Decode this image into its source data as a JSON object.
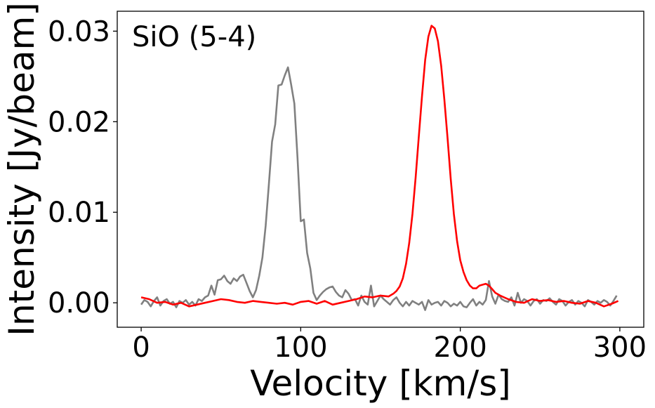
{
  "chart_data": {
    "type": "line",
    "title": "",
    "annotation": "SiO (5-4)",
    "xlabel": "Velocity [km/s]",
    "ylabel": "Intensity [Jy/beam]",
    "xlim": [
      -15,
      315
    ],
    "ylim": [
      -0.0027,
      0.0322
    ],
    "xticks": [
      {
        "value": 0,
        "label": "0"
      },
      {
        "value": 100,
        "label": "100"
      },
      {
        "value": 200,
        "label": "200"
      },
      {
        "value": 300,
        "label": "300"
      }
    ],
    "yticks": [
      {
        "value": 0.0,
        "label": "0.00"
      },
      {
        "value": 0.01,
        "label": "0.01"
      },
      {
        "value": 0.02,
        "label": "0.02"
      },
      {
        "value": 0.03,
        "label": "0.03"
      }
    ],
    "grid": false,
    "series": [
      {
        "color": "#808080",
        "x": [
          0,
          2,
          4,
          6,
          8,
          10,
          12,
          14,
          16,
          18,
          20,
          22,
          24,
          26,
          28,
          30,
          32,
          34,
          36,
          38,
          40,
          42,
          44,
          46,
          48,
          50,
          52,
          54,
          56,
          58,
          60,
          62,
          64,
          66,
          68,
          70,
          72,
          74,
          76,
          78,
          80,
          82,
          84,
          86,
          88,
          90,
          92,
          94,
          96,
          98,
          100,
          102,
          104,
          106,
          108,
          110,
          112,
          114,
          116,
          118,
          120,
          122,
          124,
          126,
          128,
          130,
          132,
          134,
          136,
          138,
          140,
          142,
          144,
          146,
          148,
          150,
          152,
          154,
          156,
          158,
          160,
          162,
          164,
          166,
          168,
          170,
          172,
          174,
          176,
          178,
          180,
          182,
          184,
          186,
          188,
          190,
          192,
          194,
          196,
          198,
          200,
          202,
          204,
          206,
          208,
          210,
          212,
          214,
          216,
          218,
          220,
          222,
          224,
          226,
          228,
          230,
          232,
          234,
          236,
          238,
          240,
          242,
          244,
          246,
          248,
          250,
          252,
          254,
          256,
          258,
          260,
          262,
          264,
          266,
          268,
          270,
          272,
          274,
          276,
          278,
          280,
          282,
          284,
          286,
          288,
          290,
          292,
          294,
          296,
          298
        ],
        "y": [
          -0.0002,
          0.0003,
          0.0001,
          -0.0004,
          0.0002,
          0.0006,
          -0.0003,
          0.0002,
          0.0004,
          -0.0001,
          0.0001,
          -0.0005,
          0.0002,
          0.0,
          0.0003,
          -0.0002,
          0.0001,
          -0.0003,
          0.0004,
          0.0002,
          0.0006,
          0.0008,
          0.0019,
          0.0009,
          0.0025,
          0.0026,
          0.003,
          0.0024,
          0.0021,
          0.0027,
          0.0024,
          0.0029,
          0.0031,
          0.0022,
          0.0013,
          0.0006,
          0.0014,
          0.003,
          0.005,
          0.0085,
          0.013,
          0.0178,
          0.0197,
          0.024,
          0.0241,
          0.0251,
          0.026,
          0.0241,
          0.022,
          0.016,
          0.009,
          0.0092,
          0.0055,
          0.0038,
          0.0011,
          0.0003,
          0.0008,
          0.0012,
          0.0015,
          0.0017,
          0.0018,
          0.0012,
          0.0008,
          0.0006,
          0.0014,
          0.001,
          0.0003,
          0.0004,
          -0.0003,
          0.0008,
          0.0001,
          -0.0002,
          0.0019,
          -0.0004,
          0.0002,
          0.0008,
          0.0004,
          0.0001,
          -0.0002,
          0.0003,
          0.0006,
          0.0,
          -0.0004,
          0.0001,
          -0.0003,
          0.0002,
          0.0,
          -0.0002,
          0.0001,
          -0.0008,
          0.0003,
          -0.0002,
          0.0,
          0.0001,
          -0.0003,
          0.0002,
          0.0,
          -0.0004,
          -0.0001,
          -0.0003,
          0.0001,
          -0.0004,
          -0.0005,
          0.0,
          0.0004,
          -0.0003,
          0.0001,
          -0.0002,
          0.0003,
          0.0024,
          0.0007,
          -0.0001,
          0.0009,
          0.0004,
          0.0002,
          0.0001,
          0.0006,
          -0.0003,
          0.0011,
          0.0,
          0.0004,
          0.0002,
          -0.0003,
          0.0002,
          0.0004,
          -0.0001,
          0.0003,
          0.0002,
          0.0005,
          0.0001,
          -0.0002,
          0.0004,
          0.0002,
          -0.0003,
          0.0001,
          0.0003,
          -0.0002,
          0.0002,
          0.0,
          -0.0004,
          0.0003,
          0.0001,
          -0.0002,
          0.0002,
          0.0,
          0.0003,
          0.0001,
          -0.0003,
          0.0002,
          0.0008
        ]
      },
      {
        "color": "#ff0000",
        "x": [
          0,
          5,
          10,
          15,
          20,
          25,
          30,
          35,
          40,
          45,
          50,
          55,
          60,
          65,
          70,
          75,
          80,
          85,
          90,
          95,
          100,
          105,
          110,
          115,
          120,
          125,
          130,
          135,
          140,
          145,
          150,
          155,
          158,
          160,
          162,
          164,
          166,
          168,
          170,
          172,
          174,
          176,
          178,
          180,
          182,
          184,
          186,
          188,
          190,
          192,
          194,
          196,
          198,
          200,
          202,
          204,
          206,
          208,
          210,
          212,
          214,
          216,
          218,
          220,
          222,
          225,
          230,
          235,
          240,
          245,
          250,
          255,
          260,
          265,
          270,
          275,
          280,
          285,
          290,
          295,
          299
        ],
        "y": [
          0.0006,
          0.0004,
          0.0,
          0.0001,
          -0.0002,
          0.0,
          -0.0004,
          -0.0002,
          0.0,
          0.0002,
          0.0004,
          0.0003,
          0.0001,
          0.0,
          0.0002,
          0.0001,
          0.0,
          -0.0001,
          0.0,
          -0.0002,
          0.0001,
          0.0002,
          -0.0001,
          0.0002,
          -0.0002,
          0.0,
          0.0002,
          0.0004,
          0.0007,
          0.0006,
          0.0008,
          0.0007,
          0.001,
          0.0013,
          0.0018,
          0.0027,
          0.0043,
          0.0066,
          0.0098,
          0.0138,
          0.0183,
          0.0228,
          0.0268,
          0.0294,
          0.0306,
          0.0303,
          0.0289,
          0.0262,
          0.0225,
          0.0182,
          0.0137,
          0.0098,
          0.0068,
          0.0047,
          0.0034,
          0.0025,
          0.0019,
          0.0016,
          0.0016,
          0.0019,
          0.002,
          0.0021,
          0.0019,
          0.0015,
          0.0011,
          0.0008,
          0.0004,
          0.0001,
          0.0,
          0.0004,
          0.0002,
          0.0003,
          0.0001,
          0.0002,
          0.0,
          -0.0001,
          0.0002,
          0.0,
          -0.0004,
          -0.0001,
          0.0002
        ]
      }
    ]
  }
}
